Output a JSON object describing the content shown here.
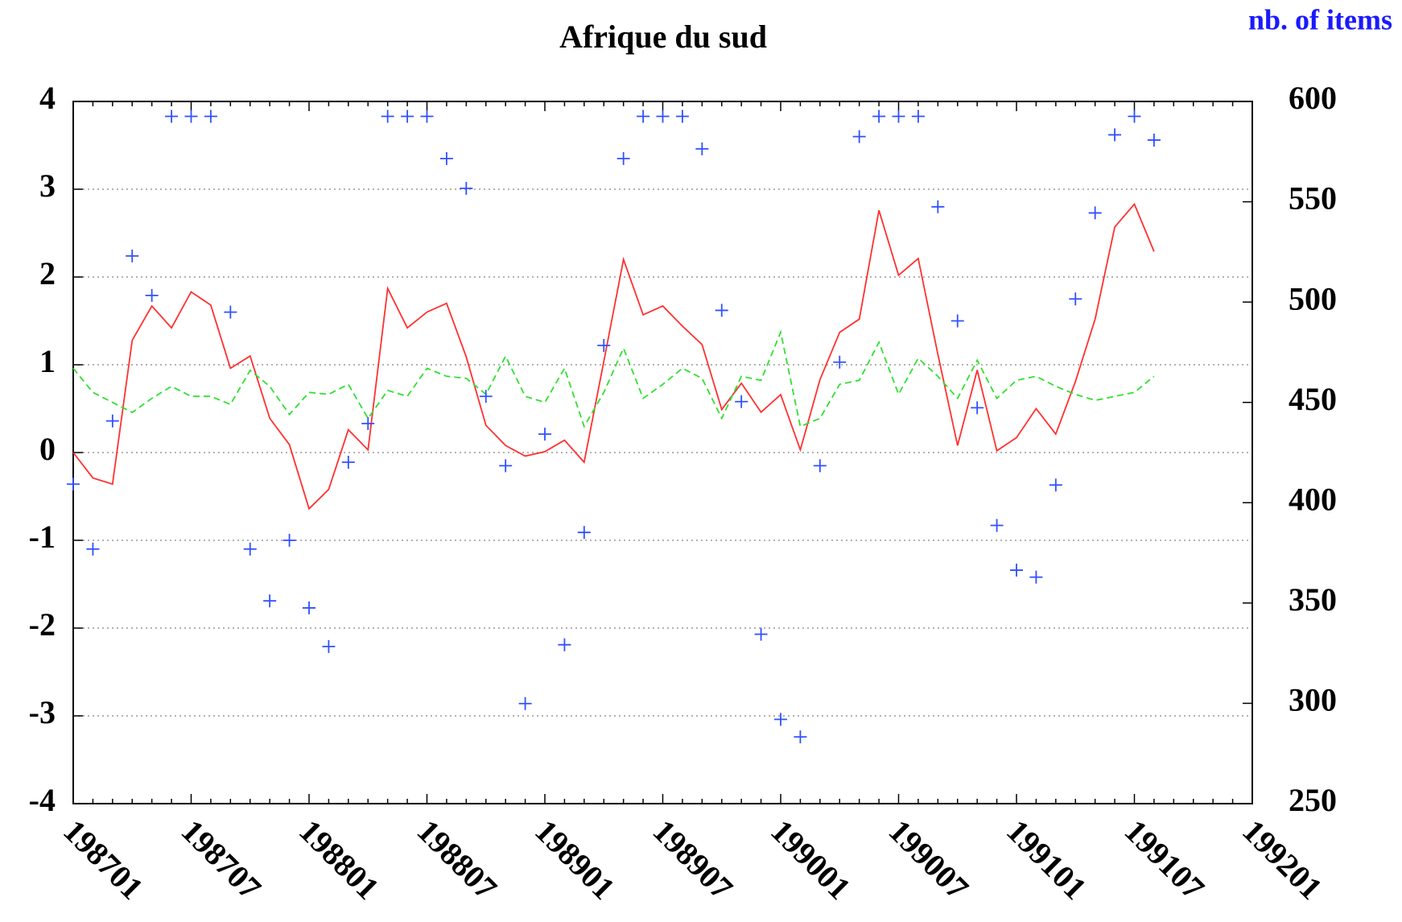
{
  "chart_data": {
    "type": "line",
    "title": "Afrique du sud",
    "y2label": "nb. of items",
    "categories": [
      "198701",
      null,
      null,
      null,
      null,
      null,
      "198707",
      null,
      null,
      null,
      null,
      null,
      "198801",
      null,
      null,
      null,
      null,
      null,
      "198807",
      null,
      null,
      null,
      null,
      null,
      "198901",
      null,
      null,
      null,
      null,
      null,
      "198907",
      null,
      null,
      null,
      null,
      null,
      "199001",
      null,
      null,
      null,
      null,
      null,
      "199007",
      null,
      null,
      null,
      null,
      null,
      "199101",
      null,
      null,
      null,
      null,
      null,
      "199107",
      null,
      null,
      null,
      null,
      null,
      "199201"
    ],
    "series": [
      {
        "color": "#ff3030",
        "style": "solid",
        "values": [
          0,
          -0.29,
          -0.36,
          1.28,
          1.67,
          1.42,
          1.83,
          1.68,
          0.96,
          1.1,
          0.39,
          0.09,
          -0.64,
          -0.42,
          0.26,
          0.03,
          1.87,
          1.42,
          1.6,
          1.7,
          1.09,
          0.31,
          0.08,
          -0.04,
          0.01,
          0.14,
          -0.11,
          1.04,
          2.2,
          1.57,
          1.67,
          1.44,
          1.23,
          0.49,
          0.79,
          0.46,
          0.66,
          0.03,
          0.83,
          1.37,
          1.52,
          2.76,
          2.02,
          2.21,
          1.12,
          0.08,
          0.94,
          0.02,
          0.17,
          0.5,
          0.21,
          0.81,
          1.52,
          2.57,
          2.83,
          2.29,
          null,
          null,
          null,
          null,
          null
        ]
      },
      {
        "color": "#30e030",
        "style": "dashed",
        "axis": "y2",
        "values": [
          467,
          455,
          450,
          445,
          452,
          458,
          453,
          453,
          449,
          466,
          458,
          444,
          455,
          454,
          459,
          442,
          456,
          453,
          467,
          463,
          462,
          454,
          473,
          453,
          450,
          467,
          438,
          455,
          477,
          452,
          459,
          467,
          462,
          442,
          463,
          461,
          485,
          438,
          442,
          459,
          461,
          480,
          454,
          472,
          463,
          452,
          471,
          452,
          461,
          463,
          458,
          454,
          451,
          453,
          455,
          463,
          null,
          null,
          null,
          null,
          null
        ]
      },
      {
        "color": "#3050ff",
        "style": "points",
        "values": [
          -0.36,
          -1.1,
          0.36,
          2.24,
          1.79,
          3.83,
          3.83,
          3.83,
          1.6,
          -1.1,
          -1.69,
          -1.0,
          -1.77,
          -2.21,
          -0.11,
          0.33,
          3.83,
          3.83,
          3.83,
          3.35,
          3.01,
          0.64,
          -0.15,
          -2.86,
          0.21,
          -2.19,
          -0.91,
          1.22,
          3.35,
          3.83,
          3.83,
          3.83,
          3.46,
          1.62,
          0.58,
          -2.07,
          -3.04,
          -3.24,
          -0.15,
          1.03,
          3.6,
          3.83,
          3.83,
          3.83,
          2.8,
          1.5,
          0.51,
          -0.83,
          -1.34,
          -1.42,
          -0.37,
          1.75,
          2.73,
          3.62,
          3.83,
          3.56,
          null,
          null,
          null,
          null,
          null
        ]
      }
    ],
    "ylim": [
      -4,
      4
    ],
    "yticks": [
      -4,
      -3,
      -2,
      -1,
      0,
      1,
      2,
      3,
      4
    ],
    "y2lim": [
      250,
      600
    ],
    "y2ticks": [
      250,
      300,
      350,
      400,
      450,
      500,
      550,
      600
    ],
    "grid": true
  }
}
